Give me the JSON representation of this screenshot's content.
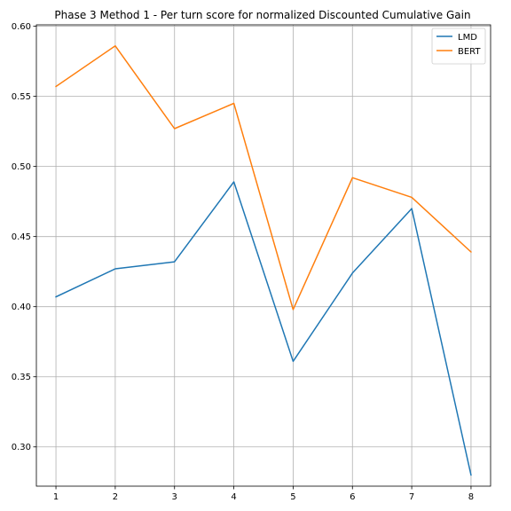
{
  "chart_data": {
    "type": "line",
    "title": "Phase 3 Method 1 - Per turn score for normalized Discounted Cumulative Gain",
    "xlabel": "",
    "ylabel": "",
    "x": [
      1,
      2,
      3,
      4,
      5,
      6,
      7,
      8
    ],
    "xticks": [
      "1",
      "2",
      "3",
      "4",
      "5",
      "6",
      "7",
      "8"
    ],
    "xlim": [
      0.67,
      8.33
    ],
    "yticks": [
      "0.30",
      "0.35",
      "0.40",
      "0.45",
      "0.50",
      "0.55",
      "0.60"
    ],
    "ylim": [
      0.272,
      0.601
    ],
    "grid": true,
    "legend_position": "top-right",
    "series": [
      {
        "name": "LMD",
        "color": "#1f77b4",
        "values": [
          0.407,
          0.427,
          0.432,
          0.489,
          0.361,
          0.424,
          0.47,
          0.28
        ]
      },
      {
        "name": "BERT",
        "color": "#ff7f0e",
        "values": [
          0.557,
          0.586,
          0.527,
          0.545,
          0.398,
          0.492,
          0.478,
          0.439
        ]
      }
    ]
  }
}
